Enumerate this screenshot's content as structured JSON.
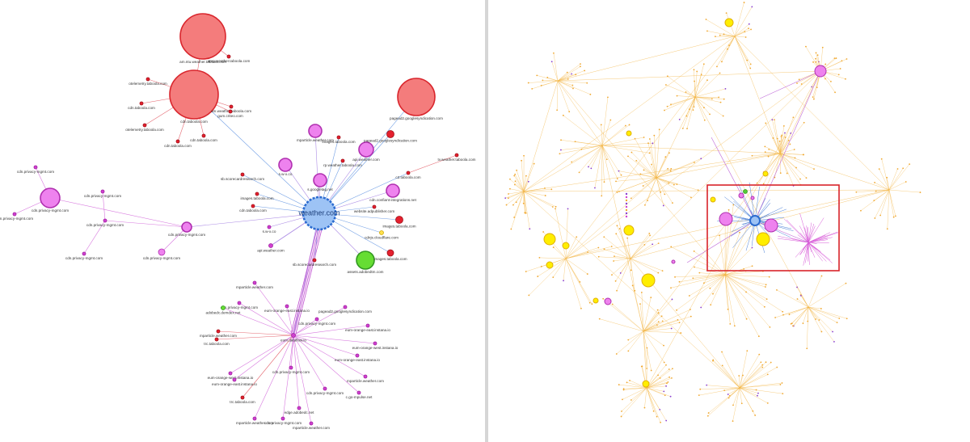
{
  "left_graph": {
    "nodes": [
      {
        "label": "weather.com"
      },
      {
        "label": "cdn.taboola.com"
      },
      {
        "label": "am.ntu.weather.taboola.com"
      },
      {
        "label": "pagead2.googlesyndication.com"
      },
      {
        "label": "cdn.privacy-mgmt.com"
      },
      {
        "label": "cdn.privacy-mgmt.com"
      },
      {
        "label": "cdn.privacy-mgmt.com"
      },
      {
        "label": "mparticle.weather.com"
      },
      {
        "label": "api.weather.com"
      },
      {
        "label": "s.w-x.co"
      },
      {
        "label": "s.googletag.net"
      },
      {
        "label": "cdn.confiant-integrations.net"
      },
      {
        "label": "assets.adobedtm.com"
      },
      {
        "label": "images.taboola.com"
      },
      {
        "label": "eum.dataflow.io"
      },
      {
        "label": "cdn.taboola.com"
      },
      {
        "label": "otelemetry.taboola.com"
      },
      {
        "label": "amp.weather.taboola.com"
      },
      {
        "label": "am.weather.taboola.com"
      },
      {
        "label": "gum.criteo.com"
      },
      {
        "label": "cdn.taboola.com"
      },
      {
        "label": "cdn.taboola.com"
      },
      {
        "label": "otelemetry.taboola.com"
      },
      {
        "label": "images.taboola.com"
      },
      {
        "label": "pagead2.googlesyndication.com"
      },
      {
        "label": "sb.scorecardresearch.com"
      },
      {
        "label": "rp.weather.taboola.com"
      },
      {
        "label": "c2.taboola.com"
      },
      {
        "label": "tv.weather.taboola.com"
      },
      {
        "label": "images.taboola.com"
      },
      {
        "label": "cdn.taboola.com"
      },
      {
        "label": "website.adpublisher.com"
      },
      {
        "label": "s.w-x.co"
      },
      {
        "label": "images.taboola.com"
      },
      {
        "label": "cdnjs.cloudflare.com"
      },
      {
        "label": "api.weather.com"
      },
      {
        "label": "sb.scorecardresearch.com"
      },
      {
        "label": "mparticle.weather.com"
      },
      {
        "label": "cdn.privacy-mgmt.com"
      },
      {
        "label": "adobedc.demdex.net"
      },
      {
        "label": "eum-orange-east.instana.io"
      },
      {
        "label": "pagead2.googlesyndication.com"
      },
      {
        "label": "cdn.privacy-mgmt.com"
      },
      {
        "label": "mparticle.weather.com"
      },
      {
        "label": "eum-orange-east.instana.io"
      },
      {
        "label": "trc.taboola.com"
      },
      {
        "label": "eum-orange-west.instana.io"
      },
      {
        "label": "eum-orange-east.instana.io"
      },
      {
        "label": "eum-orange-west.instana.io"
      },
      {
        "label": "mparticle.weather.com"
      },
      {
        "label": "eum-orange-east.instana.io"
      },
      {
        "label": "trc.taboola.com"
      },
      {
        "label": "cdn.privacy-mgmt.com"
      },
      {
        "label": "c.go-mpulse.net"
      },
      {
        "label": "edge.adobedc.net"
      },
      {
        "label": "mparticle.weather.com"
      },
      {
        "label": "cdn.privacy-mgmt.com"
      },
      {
        "label": "mparticle.weather.com"
      },
      {
        "label": "cdn.privacy-mgmt.com"
      },
      {
        "label": "cdn.privacy-mgmt.com"
      },
      {
        "label": "cdn.privacy-mgmt.com"
      },
      {
        "label": "cdn.privacy-mgmt.com"
      },
      {
        "label": "cdn.privacy-mgmt.com"
      },
      {
        "label": "cdn.privacy-mgmt.com"
      }
    ]
  }
}
